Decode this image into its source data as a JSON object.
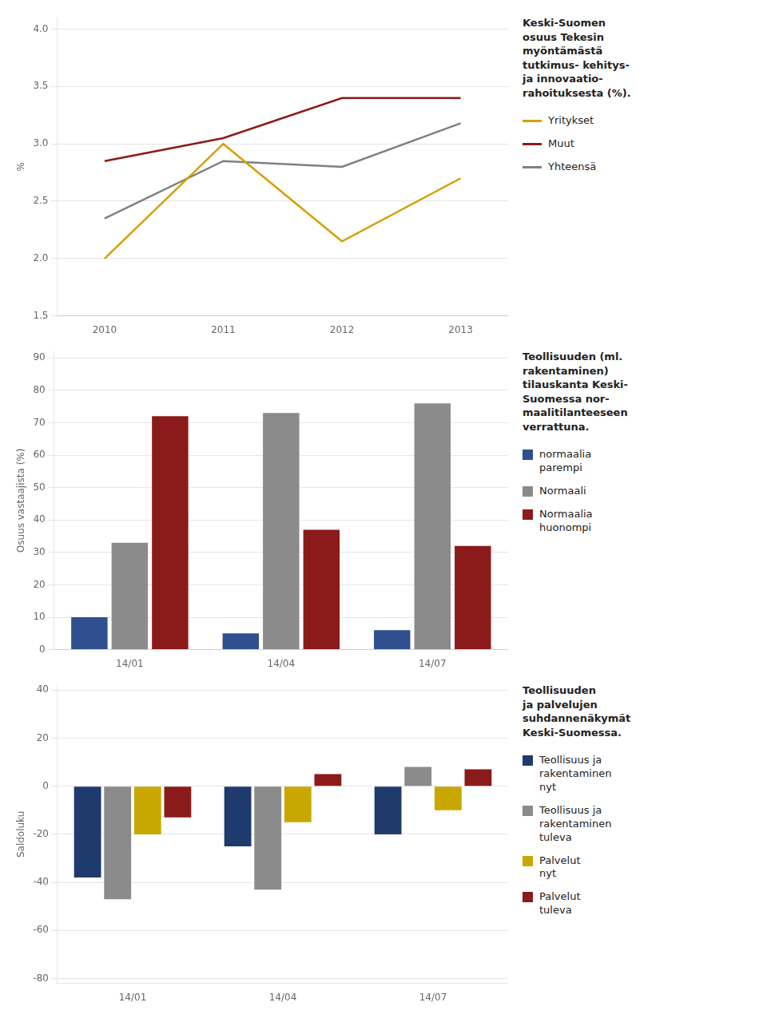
{
  "chart_data": [
    {
      "type": "line",
      "title": "Keski-Suomen\nosuus Tekesin\nmyöntämästä\ntutkimus- kehitys-\nja innovaatio-\nrahoituksesta (%).",
      "ylabel": "%",
      "x": [
        2010,
        2011,
        2012,
        2013
      ],
      "xlim": [
        2009.6,
        2013.4
      ],
      "xticks": [
        2010,
        2011,
        2012,
        2013
      ],
      "series": [
        {
          "name": "Yritykset",
          "color": "#D4A000",
          "values": [
            2.0,
            3.0,
            2.15,
            2.7
          ]
        },
        {
          "name": "Muut",
          "color": "#8B1A1A",
          "values": [
            2.85,
            3.05,
            3.4,
            3.4
          ]
        },
        {
          "name": "Yhteensä",
          "color": "#808080",
          "values": [
            2.35,
            2.85,
            2.8,
            3.18
          ]
        }
      ],
      "ylim": [
        1.5,
        4.1
      ],
      "yticks": [
        1.5,
        {
          "value": 2,
          "label": "2.0"
        },
        2.5,
        {
          "value": 3,
          "label": "3.0"
        },
        3.5,
        {
          "value": 4,
          "label": "4.0"
        }
      ],
      "grid": "y",
      "legend": "right"
    },
    {
      "type": "bar",
      "title": "Teollisuuden (ml.\nrakentaminen)\ntilauskanta Keski-\nSuomessa nor-\nmaalitilanteeseen\nverrattuna.",
      "ylabel": "Osuus vastaajista (%)",
      "categories": [
        "14/01",
        "14/04",
        "14/07"
      ],
      "series": [
        {
          "name": "normaalia\nparempi",
          "color": "#2F4F8F",
          "values": [
            10,
            5,
            6
          ]
        },
        {
          "name": "Normaali",
          "color": "#8B8B8B",
          "values": [
            33,
            73,
            76
          ]
        },
        {
          "name": "Normaalia\nhuonompi",
          "color": "#8B1A1A",
          "values": [
            72,
            37,
            32
          ]
        }
      ],
      "ylim": [
        0,
        92
      ],
      "yticks": [
        0,
        10,
        20,
        30,
        40,
        50,
        60,
        70,
        80,
        90
      ],
      "grid": "y",
      "legend": "right"
    },
    {
      "type": "bar",
      "title": "Teollisuuden\nja palvelujen\nsuhdannenäkymät\nKeski-Suomessa.",
      "ylabel": "Saldoluku",
      "categories": [
        "14/01",
        "14/04",
        "14/07"
      ],
      "series": [
        {
          "name": "Teollisuus ja\nrakentaminen\nnyt",
          "color": "#1F3B6E",
          "values": [
            -38,
            -25,
            -20
          ]
        },
        {
          "name": "Teollisuus ja\nrakentaminen\ntuleva",
          "color": "#8B8B8B",
          "values": [
            -47,
            -43,
            8
          ]
        },
        {
          "name": "Palvelut\nnyt",
          "color": "#C8A800",
          "values": [
            -20,
            -15,
            -10
          ]
        },
        {
          "name": "Palvelut\ntuleva",
          "color": "#8B1A1A",
          "values": [
            -13,
            5,
            7
          ]
        }
      ],
      "ylim": [
        -82,
        42
      ],
      "yticks": [
        -80,
        -60,
        -40,
        -20,
        0,
        20,
        40
      ],
      "grid": "y",
      "legend": "right"
    }
  ]
}
